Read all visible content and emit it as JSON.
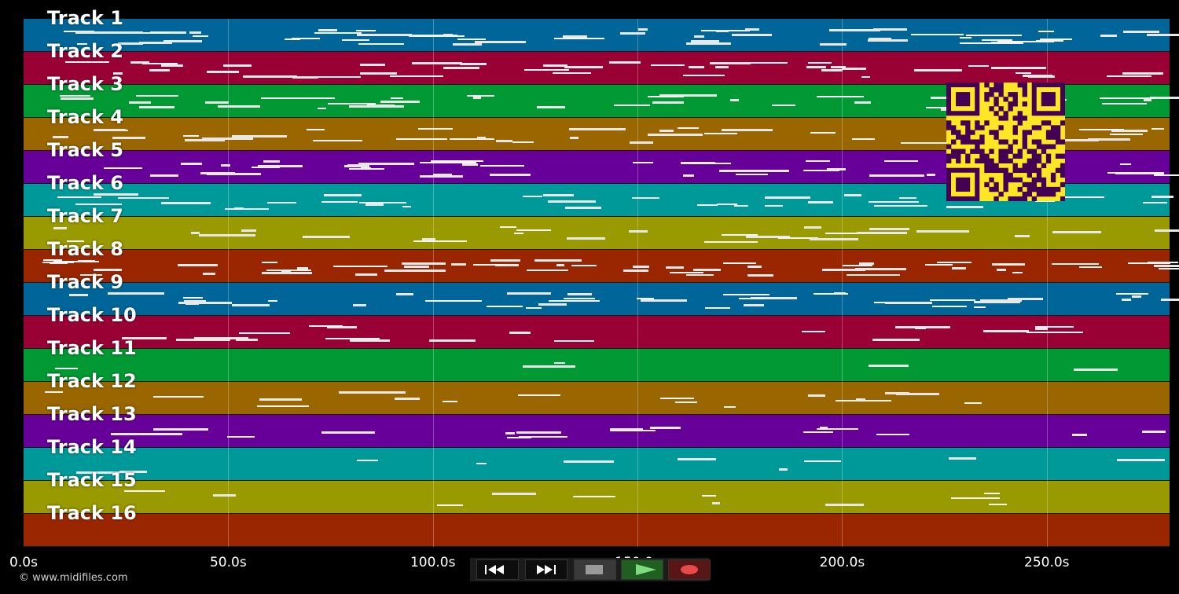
{
  "tracks": [
    {
      "label": "Track 1",
      "color": "#006699"
    },
    {
      "label": "Track 2",
      "color": "#990033"
    },
    {
      "label": "Track 3",
      "color": "#009933"
    },
    {
      "label": "Track 4",
      "color": "#996600"
    },
    {
      "label": "Track 5",
      "color": "#660099"
    },
    {
      "label": "Track 6",
      "color": "#009999"
    },
    {
      "label": "Track 7",
      "color": "#999900"
    },
    {
      "label": "Track 8",
      "color": "#992600"
    },
    {
      "label": "Track 9",
      "color": "#006699"
    },
    {
      "label": "Track 10",
      "color": "#990033"
    },
    {
      "label": "Track 11",
      "color": "#009933"
    },
    {
      "label": "Track 12",
      "color": "#996600"
    },
    {
      "label": "Track 13",
      "color": "#660099"
    },
    {
      "label": "Track 14",
      "color": "#009999"
    },
    {
      "label": "Track 15",
      "color": "#999900"
    },
    {
      "label": "Track 16",
      "color": "#992600"
    }
  ],
  "timeline": {
    "duration_seconds": 280,
    "ticks": [
      "0.0s",
      "50.0s",
      "100.0s",
      "150.0s",
      "200.0s",
      "250.0s"
    ],
    "tick_values": [
      0,
      50,
      100,
      150,
      200,
      250
    ]
  },
  "transport": {
    "buttons": [
      {
        "name": "rewind-button",
        "icon": "rewind-icon"
      },
      {
        "name": "fast-forward-button",
        "icon": "fast-forward-icon"
      },
      {
        "name": "stop-button",
        "icon": "stop-icon"
      },
      {
        "name": "play-button",
        "icon": "play-icon",
        "accent": "#7ddc7d"
      },
      {
        "name": "record-button",
        "icon": "record-icon",
        "accent": "#e84a4a"
      }
    ]
  },
  "footer": {
    "copyright": "© www.midifiles.com"
  },
  "qr_code": {
    "color_fg": "#440154",
    "color_bg": "#fde725"
  }
}
